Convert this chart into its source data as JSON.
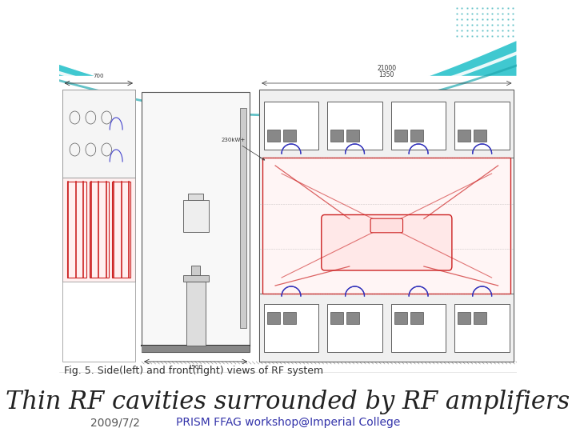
{
  "bg_top_color": "#40C8D0",
  "bg_white": "#FFFFFF",
  "wave_color1": "#FFFFFF",
  "wave_color2": "#20A8B0",
  "title": "Thin RF cavities surrounded by RF amplifiers",
  "title_fontsize": 22,
  "title_color": "#222222",
  "date_text": "2009/7/2",
  "date_fontsize": 10,
  "date_color": "#555555",
  "subtitle_text": "PRISM FFAG workshop@Imperial College",
  "subtitle_fontsize": 10,
  "subtitle_color": "#3333AA",
  "caption_text": "Fig. 5. Side(left) and front(right) views of RF system",
  "caption_fontsize": 9,
  "caption_color": "#333333",
  "slide_bg": "#FFFFFF"
}
